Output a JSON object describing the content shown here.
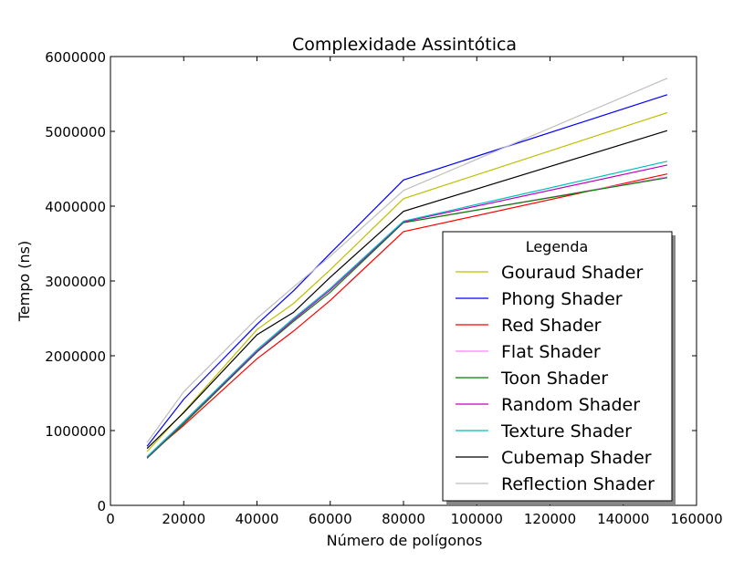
{
  "chart_data": {
    "type": "line",
    "title": "Complexidade Assintótica",
    "xlabel": "Número de polígonos",
    "ylabel": "Tempo (ns)",
    "xlim": [
      0,
      160000
    ],
    "ylim": [
      0,
      6000000
    ],
    "xticks": [
      0,
      20000,
      40000,
      60000,
      80000,
      100000,
      120000,
      140000,
      160000
    ],
    "yticks": [
      0,
      1000000,
      2000000,
      3000000,
      4000000,
      5000000,
      6000000
    ],
    "grid": false,
    "legend": {
      "title": "Legenda",
      "position": "lower-right"
    },
    "x": [
      10000,
      20000,
      40000,
      50000,
      60000,
      80000,
      152000
    ],
    "series": [
      {
        "name": "Gouraud Shader",
        "color": "#bfbf00",
        "values": [
          720000,
          1250000,
          2350000,
          2700000,
          3150000,
          4100000,
          5250000
        ]
      },
      {
        "name": "Phong Shader",
        "color": "#0000ff",
        "values": [
          790000,
          1420000,
          2420000,
          2870000,
          3370000,
          4350000,
          5490000
        ]
      },
      {
        "name": "Red Shader",
        "color": "#ff0000",
        "values": [
          650000,
          1070000,
          1960000,
          2330000,
          2740000,
          3660000,
          4430000
        ]
      },
      {
        "name": "Flat Shader",
        "color": "#ff80ff",
        "values": [
          630000,
          1100000,
          2050000,
          2480000,
          2880000,
          3780000,
          4390000
        ]
      },
      {
        "name": "Toon Shader",
        "color": "#007f00",
        "values": [
          630000,
          1090000,
          2050000,
          2460000,
          2850000,
          3780000,
          4380000
        ]
      },
      {
        "name": "Random Shader",
        "color": "#bf00bf",
        "values": [
          640000,
          1110000,
          2060000,
          2480000,
          2880000,
          3790000,
          4550000
        ]
      },
      {
        "name": "Texture Shader",
        "color": "#00bfbf",
        "values": [
          650000,
          1120000,
          2080000,
          2500000,
          2900000,
          3800000,
          4600000
        ]
      },
      {
        "name": "Cubemap Shader",
        "color": "#000000",
        "values": [
          760000,
          1240000,
          2280000,
          2580000,
          3050000,
          3930000,
          5010000
        ]
      },
      {
        "name": "Reflection Shader",
        "color": "#bfbfbf",
        "values": [
          840000,
          1520000,
          2500000,
          2920000,
          3330000,
          4210000,
          5710000
        ]
      }
    ]
  }
}
